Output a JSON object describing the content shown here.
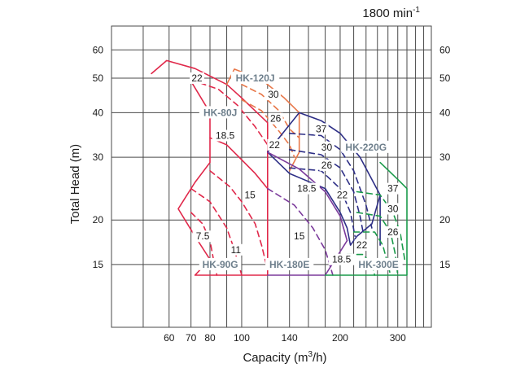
{
  "chart_data": {
    "type": "line",
    "title": "",
    "speed_label": "1800 min",
    "speed_label_sup": "-1",
    "xlabel_main": "Capacity (m",
    "xlabel_sup": "3",
    "xlabel_end": "/h)",
    "ylabel": "Total Head (m)",
    "x_scale": "log",
    "y_scale": "log",
    "xlim": [
      40,
      380
    ],
    "ylim": [
      10,
      70
    ],
    "grid": true,
    "x_ticks": [
      {
        "value": 60,
        "label": "60"
      },
      {
        "value": 70,
        "label": "70"
      },
      {
        "value": 80,
        "label": "80"
      },
      {
        "value": 100,
        "label": "100"
      },
      {
        "value": 140,
        "label": "140"
      },
      {
        "value": 200,
        "label": "200"
      },
      {
        "value": 300,
        "label": "300"
      }
    ],
    "y_ticks": [
      {
        "value": 15,
        "label": "15"
      },
      {
        "value": 20,
        "label": "20"
      },
      {
        "value": 30,
        "label": "30"
      },
      {
        "value": 40,
        "label": "40"
      },
      {
        "value": 50,
        "label": "50"
      },
      {
        "value": 60,
        "label": "60"
      }
    ],
    "colors": {
      "grid": "#4a4a4a",
      "text": "#1a1a1a",
      "model_label": "#6e7f8c",
      "red": "#e0284a",
      "orange": "#e8784a",
      "navy": "#2e2f86",
      "purple": "#7b3a9b",
      "green": "#1a9a4a"
    },
    "series": [
      {
        "color": "red",
        "dashed": false,
        "points": [
          [
            53,
            51.5
          ],
          [
            59,
            56.0
          ],
          [
            72,
            53.2
          ],
          [
            90,
            48.0
          ],
          [
            100,
            44.0
          ],
          [
            120,
            37.5
          ]
        ]
      },
      {
        "color": "red",
        "dashed": true,
        "points": [
          [
            70,
            49.5
          ],
          [
            85,
            46.5
          ],
          [
            97,
            42.0
          ],
          [
            110,
            36.5
          ],
          [
            120,
            32.5
          ]
        ]
      },
      {
        "color": "red",
        "dashed": false,
        "points": [
          [
            70,
            49.0
          ],
          [
            80,
            40.0
          ],
          [
            80,
            29.0
          ],
          [
            72,
            25.5
          ],
          [
            64,
            21.5
          ],
          [
            72,
            18.0
          ],
          [
            80,
            15.5
          ],
          [
            72,
            14.0
          ],
          [
            100,
            14.0
          ],
          [
            120,
            14.0
          ],
          [
            120,
            37.5
          ]
        ]
      },
      {
        "color": "red",
        "dashed": false,
        "points": [
          [
            80,
            34.0
          ],
          [
            90,
            32.5
          ],
          [
            100,
            29.5
          ],
          [
            110,
            27.0
          ],
          [
            120,
            24.5
          ]
        ]
      },
      {
        "color": "red",
        "dashed": true,
        "points": [
          [
            80,
            27.5
          ],
          [
            92,
            24.8
          ],
          [
            100,
            22.5
          ],
          [
            110,
            19.5
          ],
          [
            115,
            17.0
          ],
          [
            120,
            14.5
          ]
        ]
      },
      {
        "color": "red",
        "dashed": true,
        "points": [
          [
            70,
            24.5
          ],
          [
            80,
            22.5
          ],
          [
            90,
            19.0
          ],
          [
            95,
            16.5
          ],
          [
            100,
            14.0
          ]
        ]
      },
      {
        "color": "red",
        "dashed": true,
        "points": [
          [
            70,
            21.0
          ],
          [
            76,
            19.5
          ],
          [
            80,
            17.5
          ],
          [
            82,
            15.5
          ],
          [
            84,
            14.0
          ]
        ]
      },
      {
        "color": "orange",
        "dashed": false,
        "points": [
          [
            90,
            48.0
          ],
          [
            95,
            53.0
          ],
          [
            115,
            49.5
          ],
          [
            135,
            44.0
          ],
          [
            150,
            40.0
          ]
        ]
      },
      {
        "color": "orange",
        "dashed": true,
        "points": [
          [
            100,
            48.0
          ],
          [
            115,
            45.0
          ],
          [
            130,
            40.5
          ],
          [
            140,
            36.0
          ],
          [
            150,
            34.0
          ]
        ]
      },
      {
        "color": "orange",
        "dashed": true,
        "points": [
          [
            100,
            43.5
          ],
          [
            115,
            40.5
          ],
          [
            130,
            35.5
          ],
          [
            140,
            32.5
          ],
          [
            145,
            30.0
          ]
        ]
      },
      {
        "color": "orange",
        "dashed": false,
        "points": [
          [
            150,
            40.0
          ],
          [
            150,
            31.0
          ],
          [
            140,
            27.5
          ]
        ]
      },
      {
        "color": "navy",
        "dashed": false,
        "points": [
          [
            120,
            31.0
          ],
          [
            150,
            40.0
          ],
          [
            175,
            38.0
          ],
          [
            200,
            35.0
          ],
          [
            230,
            30.0
          ],
          [
            265,
            23.5
          ],
          [
            265,
            17.0
          ]
        ]
      },
      {
        "color": "navy",
        "dashed": true,
        "points": [
          [
            140,
            35.0
          ],
          [
            175,
            34.5
          ],
          [
            200,
            31.5
          ],
          [
            220,
            27.5
          ],
          [
            240,
            22.0
          ],
          [
            250,
            19.0
          ]
        ]
      },
      {
        "color": "navy",
        "dashed": true,
        "points": [
          [
            140,
            31.5
          ],
          [
            175,
            30.5
          ],
          [
            200,
            28.0
          ],
          [
            220,
            24.0
          ],
          [
            230,
            20.5
          ],
          [
            235,
            18.5
          ]
        ]
      },
      {
        "color": "navy",
        "dashed": true,
        "points": [
          [
            140,
            28.0
          ],
          [
            175,
            27.5
          ],
          [
            200,
            24.5
          ],
          [
            215,
            21.0
          ],
          [
            222,
            18.0
          ]
        ]
      },
      {
        "color": "navy",
        "dashed": false,
        "points": [
          [
            120,
            31.0
          ],
          [
            140,
            27.0
          ],
          [
            180,
            24.5
          ],
          [
            200,
            21.0
          ],
          [
            210,
            19.0
          ],
          [
            215,
            17.0
          ],
          [
            225,
            18.0
          ],
          [
            250,
            19.5
          ],
          [
            265,
            23.5
          ]
        ]
      },
      {
        "color": "purple",
        "dashed": false,
        "points": [
          [
            120,
            31.0
          ],
          [
            150,
            27.8
          ],
          [
            180,
            24.0
          ],
          [
            200,
            20.5
          ],
          [
            210,
            17.5
          ]
        ]
      },
      {
        "color": "purple",
        "dashed": true,
        "points": [
          [
            120,
            24.5
          ],
          [
            145,
            22.0
          ],
          [
            165,
            19.0
          ],
          [
            180,
            16.5
          ],
          [
            190,
            14.0
          ]
        ]
      },
      {
        "color": "purple",
        "dashed": false,
        "points": [
          [
            120,
            14.0
          ],
          [
            180,
            14.0
          ],
          [
            210,
            17.5
          ]
        ]
      },
      {
        "color": "green",
        "dashed": false,
        "points": [
          [
            265,
            29.0
          ],
          [
            300,
            26.0
          ],
          [
            320,
            24.5
          ],
          [
            320,
            14.0
          ],
          [
            180,
            14.0
          ]
        ]
      },
      {
        "color": "green",
        "dashed": true,
        "points": [
          [
            225,
            24.0
          ],
          [
            265,
            23.5
          ],
          [
            290,
            21.0
          ],
          [
            305,
            18.5
          ],
          [
            315,
            15.5
          ]
        ]
      },
      {
        "color": "green",
        "dashed": true,
        "points": [
          [
            225,
            21.0
          ],
          [
            265,
            20.5
          ],
          [
            285,
            18.5
          ],
          [
            295,
            16.0
          ],
          [
            300,
            14.0
          ]
        ]
      },
      {
        "color": "green",
        "dashed": true,
        "points": [
          [
            220,
            18.5
          ],
          [
            255,
            18.5
          ],
          [
            270,
            17.0
          ],
          [
            280,
            15.0
          ],
          [
            285,
            14.0
          ]
        ]
      },
      {
        "color": "green",
        "dashed": true,
        "points": [
          [
            210,
            16.0
          ],
          [
            235,
            16.0
          ],
          [
            250,
            15.0
          ],
          [
            255,
            14.0
          ]
        ]
      }
    ],
    "model_labels": [
      {
        "text": "HK-120J",
        "x": 110,
        "y": 50.0
      },
      {
        "text": "HK-80J",
        "x": 86,
        "y": 40.0
      },
      {
        "text": "HK-220G",
        "x": 240,
        "y": 32.0
      },
      {
        "text": "HK-90G",
        "x": 86,
        "y": 15.0
      },
      {
        "text": "HK-180E",
        "x": 140,
        "y": 15.0
      },
      {
        "text": "HK-300E",
        "x": 262,
        "y": 15.0
      }
    ],
    "kw_labels": [
      {
        "text": "22",
        "x": 73,
        "y": 50.0
      },
      {
        "text": "30",
        "x": 125,
        "y": 45.0
      },
      {
        "text": "26",
        "x": 127,
        "y": 38.5
      },
      {
        "text": "22",
        "x": 126,
        "y": 32.5
      },
      {
        "text": "18.5",
        "x": 89,
        "y": 34.5
      },
      {
        "text": "15",
        "x": 106,
        "y": 23.5
      },
      {
        "text": "7.5",
        "x": 76,
        "y": 18.0
      },
      {
        "text": "11",
        "x": 96,
        "y": 16.5
      },
      {
        "text": "37",
        "x": 175,
        "y": 36.0
      },
      {
        "text": "30",
        "x": 182,
        "y": 32.0
      },
      {
        "text": "26",
        "x": 182,
        "y": 28.5
      },
      {
        "text": "22",
        "x": 203,
        "y": 23.5
      },
      {
        "text": "18.5",
        "x": 158,
        "y": 24.5
      },
      {
        "text": "15",
        "x": 150,
        "y": 18.0
      },
      {
        "text": "18.5",
        "x": 202,
        "y": 15.5
      },
      {
        "text": "37",
        "x": 290,
        "y": 24.5
      },
      {
        "text": "30",
        "x": 290,
        "y": 21.5
      },
      {
        "text": "26",
        "x": 290,
        "y": 18.5
      },
      {
        "text": "22",
        "x": 233,
        "y": 17.0
      }
    ]
  }
}
